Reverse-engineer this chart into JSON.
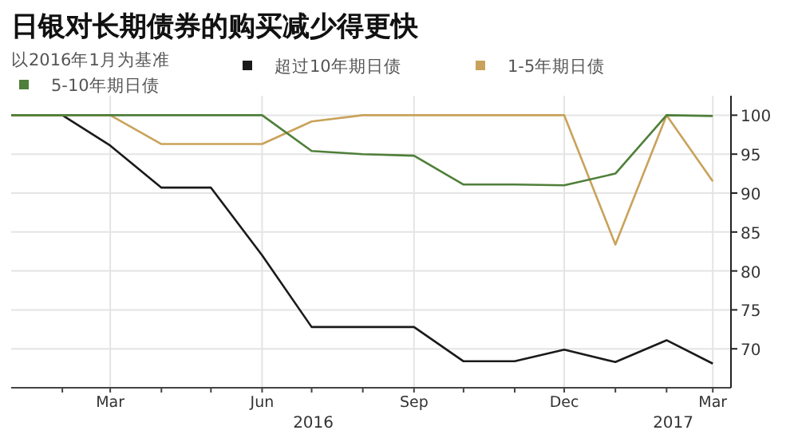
{
  "chart_data": {
    "type": "line",
    "title": "日银对长期债券的购买减少得更快",
    "subtitle": "以2016年1月为基准",
    "x": [
      "2016-01",
      "2016-02",
      "2016-03",
      "2016-04",
      "2016-05",
      "2016-06",
      "2016-07",
      "2016-08",
      "2016-09",
      "2016-10",
      "2016-11",
      "2016-12",
      "2017-01",
      "2017-02",
      "2017-03"
    ],
    "series": [
      {
        "name": "超过10年期日债",
        "color": "#1a1a1a",
        "values": [
          100,
          100,
          96.1,
          90.7,
          90.7,
          82,
          72.8,
          72.8,
          72.8,
          68.4,
          68.4,
          69.9,
          68.3,
          71.1,
          68.1
        ]
      },
      {
        "name": "1-5年期日债",
        "color": "#c9a25a",
        "values": [
          100,
          100,
          100,
          96.3,
          96.3,
          96.3,
          99.2,
          100,
          100,
          100,
          100,
          100,
          83.4,
          100,
          91.5
        ]
      },
      {
        "name": "5-10年期日债",
        "color": "#4f7f3a",
        "values": [
          100,
          100,
          100,
          100,
          100,
          100,
          95.4,
          95,
          94.8,
          91.1,
          91.1,
          91,
          92.5,
          100,
          99.9
        ]
      }
    ],
    "xlim": [
      "2016-01",
      "2017-03-12"
    ],
    "xticks": [
      {
        "value": "2016-02",
        "label": null
      },
      {
        "value": "2016-03",
        "label": "Mar"
      },
      {
        "value": "2016-04",
        "label": null
      },
      {
        "value": "2016-05",
        "label": null
      },
      {
        "value": "2016-06",
        "label": "Jun"
      },
      {
        "value": "2016-07",
        "label": null
      },
      {
        "value": "2016-08",
        "label": null
      },
      {
        "value": "2016-09",
        "label": "Sep"
      },
      {
        "value": "2016-10",
        "label": null
      },
      {
        "value": "2016-11",
        "label": null
      },
      {
        "value": "2016-12",
        "label": "Dec"
      },
      {
        "value": "2017-01",
        "label": null
      },
      {
        "value": "2017-02",
        "label": null
      },
      {
        "value": "2017-03",
        "label": "Mar"
      }
    ],
    "ylim": [
      65,
      102.5
    ],
    "yticks": [
      70,
      75,
      80,
      85,
      90,
      95,
      100
    ],
    "annotations": [
      "2016",
      "2017"
    ],
    "grid": true,
    "legend": "top",
    "marker": "none",
    "line_style": "solid"
  }
}
